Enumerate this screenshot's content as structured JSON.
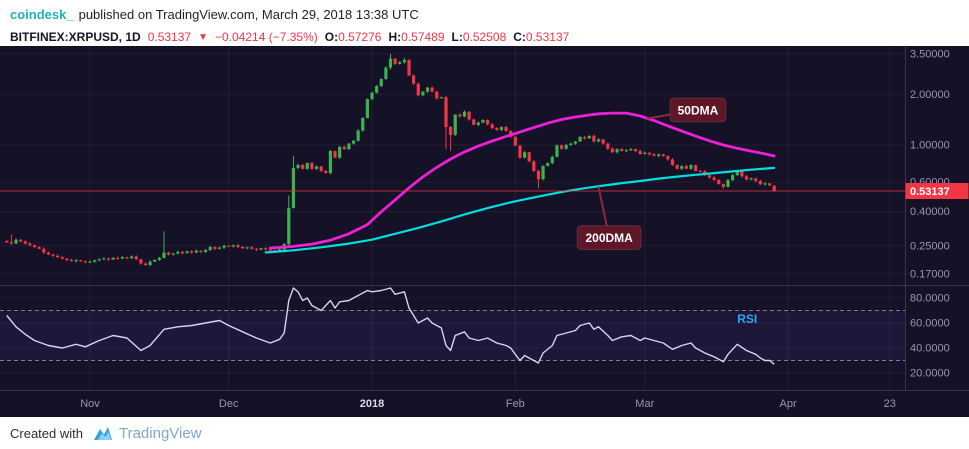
{
  "header": {
    "author": "coindesk_",
    "published": "published on TradingView.com, March 29, 2018 13:38 UTC"
  },
  "symbol_bar": {
    "symbol": "BITFINEX:XRPUSD, 1D",
    "last": "0.53137",
    "change_arrow": "▼",
    "change": "−0.04214 (−7.35%)",
    "ohlc": [
      {
        "label": "O:",
        "value": "0.57276"
      },
      {
        "label": "H:",
        "value": "0.57489"
      },
      {
        "label": "L:",
        "value": "0.52508"
      },
      {
        "label": "C:",
        "value": "0.53137"
      }
    ]
  },
  "footer": {
    "created_with": "Created with",
    "brand": "TradingView"
  },
  "colors": {
    "up": "#3bb34e",
    "down": "#f23645",
    "ma50": "#ee1fd6",
    "ma200": "#00e0df",
    "rsi_line": "#d9d2f0",
    "author_teal": "#23b3bd",
    "rsi_label": "#2fa7f0",
    "callout_bg": "#5f1626",
    "callout_line": "#8a2a3c",
    "axis_text": "#9b96ad",
    "grid": "rgba(255,255,255,0.06)"
  },
  "chart_data": {
    "type": "candlestick",
    "symbol": "BITFINEX:XRPUSD",
    "interval": "1D",
    "scale": "log",
    "x_start_date": "2017-10-14",
    "x_days_total": 196,
    "ylim": [
      0.15,
      3.9
    ],
    "price_ticks": [
      {
        "label": "3.50000",
        "value": 3.5
      },
      {
        "label": "2.00000",
        "value": 2.0
      },
      {
        "label": "1.00000",
        "value": 1.0
      },
      {
        "label": "0.60000",
        "value": 0.6
      },
      {
        "label": "0.40000",
        "value": 0.4
      },
      {
        "label": "0.25000",
        "value": 0.25
      },
      {
        "label": "0.17000",
        "value": 0.17
      }
    ],
    "time_ticks": [
      {
        "label": "Nov",
        "day": 18,
        "emphasis": false
      },
      {
        "label": "Dec",
        "day": 48,
        "emphasis": false
      },
      {
        "label": "2018",
        "day": 79,
        "emphasis": true
      },
      {
        "label": "Feb",
        "day": 110,
        "emphasis": false
      },
      {
        "label": "Mar",
        "day": 138,
        "emphasis": false
      },
      {
        "label": "Apr",
        "day": 169,
        "emphasis": false
      },
      {
        "label": "23",
        "day": 191,
        "emphasis": false
      }
    ],
    "last_price": {
      "value": 0.53137,
      "label": "0.53137"
    },
    "candles": {
      "first_open": 0.268,
      "closes": [
        0.262,
        0.258,
        0.272,
        0.266,
        0.258,
        0.252,
        0.246,
        0.24,
        0.228,
        0.222,
        0.218,
        0.214,
        0.21,
        0.206,
        0.203,
        0.205,
        0.202,
        0.2,
        0.201,
        0.205,
        0.208,
        0.21,
        0.207,
        0.212,
        0.21,
        0.214,
        0.211,
        0.216,
        0.208,
        0.196,
        0.192,
        0.201,
        0.206,
        0.212,
        0.228,
        0.222,
        0.225,
        0.23,
        0.226,
        0.232,
        0.228,
        0.234,
        0.23,
        0.236,
        0.246,
        0.24,
        0.244,
        0.25,
        0.248,
        0.252,
        0.246,
        0.242,
        0.245,
        0.24,
        0.237,
        0.242,
        0.238,
        0.235,
        0.232,
        0.238,
        0.256,
        0.42,
        0.73,
        0.76,
        0.72,
        0.78,
        0.72,
        0.745,
        0.7,
        0.68,
        0.92,
        0.84,
        0.975,
        0.945,
        1.02,
        1.06,
        1.22,
        1.45,
        1.88,
        2.05,
        2.25,
        2.48,
        2.9,
        3.28,
        3.05,
        3.12,
        3.22,
        2.6,
        2.32,
        1.98,
        2.08,
        2.2,
        2.08,
        1.9,
        1.93,
        1.28,
        1.15,
        1.52,
        1.48,
        1.58,
        1.42,
        1.32,
        1.36,
        1.41,
        1.33,
        1.26,
        1.23,
        1.28,
        1.21,
        1.12,
        0.99,
        0.84,
        0.905,
        0.8,
        0.7,
        0.625,
        0.75,
        0.78,
        0.85,
        0.995,
        0.95,
        1.0,
        1.02,
        1.05,
        1.115,
        1.095,
        1.135,
        1.05,
        1.08,
        1.02,
        0.95,
        0.905,
        0.945,
        0.92,
        0.93,
        0.945,
        0.92,
        0.885,
        0.9,
        0.88,
        0.862,
        0.878,
        0.858,
        0.82,
        0.76,
        0.722,
        0.748,
        0.722,
        0.758,
        0.7,
        0.698,
        0.66,
        0.64,
        0.618,
        0.585,
        0.562,
        0.618,
        0.66,
        0.698,
        0.65,
        0.622,
        0.632,
        0.61,
        0.582,
        0.59,
        0.573,
        0.531
      ],
      "overrides": {
        "1": {
          "h": 0.292
        },
        "34": {
          "h": 0.305
        },
        "61": {
          "h": 0.5,
          "l": 0.25
        },
        "62": {
          "h": 0.86
        },
        "83": {
          "h": 3.5,
          "l": 2.82
        },
        "86": {
          "h": 3.32
        },
        "95": {
          "l": 0.95
        },
        "96": {
          "l": 0.92
        },
        "115": {
          "l": 0.552
        },
        "155": {
          "l": 0.548
        },
        "166": {
          "o": 0.57276,
          "h": 0.57489,
          "l": 0.52508,
          "c": 0.53137
        }
      }
    },
    "ma50": {
      "name": "50DMA",
      "points": [
        [
          57,
          0.242
        ],
        [
          62,
          0.248
        ],
        [
          66,
          0.256
        ],
        [
          70,
          0.27
        ],
        [
          74,
          0.295
        ],
        [
          78,
          0.335
        ],
        [
          81,
          0.4
        ],
        [
          84,
          0.47
        ],
        [
          87,
          0.555
        ],
        [
          90,
          0.645
        ],
        [
          93,
          0.735
        ],
        [
          96,
          0.825
        ],
        [
          99,
          0.91
        ],
        [
          102,
          0.985
        ],
        [
          105,
          1.055
        ],
        [
          108,
          1.125
        ],
        [
          111,
          1.195
        ],
        [
          114,
          1.27
        ],
        [
          117,
          1.35
        ],
        [
          120,
          1.42
        ],
        [
          123,
          1.47
        ],
        [
          126,
          1.51
        ],
        [
          128,
          1.535
        ],
        [
          131,
          1.55
        ],
        [
          134,
          1.55
        ],
        [
          137,
          1.49
        ],
        [
          140,
          1.4
        ],
        [
          143,
          1.3
        ],
        [
          146,
          1.21
        ],
        [
          149,
          1.13
        ],
        [
          152,
          1.06
        ],
        [
          155,
          1.0
        ],
        [
          158,
          0.955
        ],
        [
          161,
          0.92
        ],
        [
          164,
          0.885
        ],
        [
          166,
          0.86
        ]
      ]
    },
    "ma200": {
      "name": "200DMA",
      "points": [
        [
          56,
          0.228
        ],
        [
          62,
          0.235
        ],
        [
          68,
          0.245
        ],
        [
          74,
          0.258
        ],
        [
          79,
          0.272
        ],
        [
          84,
          0.295
        ],
        [
          89,
          0.32
        ],
        [
          94,
          0.35
        ],
        [
          99,
          0.385
        ],
        [
          104,
          0.42
        ],
        [
          109,
          0.455
        ],
        [
          113,
          0.48
        ],
        [
          117,
          0.505
        ],
        [
          121,
          0.53
        ],
        [
          125,
          0.552
        ],
        [
          129,
          0.572
        ],
        [
          133,
          0.592
        ],
        [
          137,
          0.61
        ],
        [
          141,
          0.63
        ],
        [
          145,
          0.648
        ],
        [
          149,
          0.664
        ],
        [
          153,
          0.68
        ],
        [
          157,
          0.696
        ],
        [
          161,
          0.712
        ],
        [
          166,
          0.73
        ]
      ]
    },
    "rsi": {
      "label": "RSI",
      "range": [
        12,
        88
      ],
      "bands": [
        70,
        30
      ],
      "ticks": [
        {
          "label": "80.0000",
          "value": 80
        },
        {
          "label": "60.0000",
          "value": 60
        },
        {
          "label": "40.0000",
          "value": 40
        },
        {
          "label": "20.0000",
          "value": 20
        }
      ],
      "points": [
        [
          0,
          66
        ],
        [
          2,
          57
        ],
        [
          4,
          51
        ],
        [
          6,
          46
        ],
        [
          9,
          42
        ],
        [
          12,
          40
        ],
        [
          15,
          43
        ],
        [
          17,
          41
        ],
        [
          20,
          46
        ],
        [
          23,
          50
        ],
        [
          26,
          48
        ],
        [
          29,
          38
        ],
        [
          31,
          42
        ],
        [
          34,
          55
        ],
        [
          37,
          57
        ],
        [
          40,
          58
        ],
        [
          43,
          60
        ],
        [
          46,
          62
        ],
        [
          48,
          58
        ],
        [
          51,
          53
        ],
        [
          54,
          48
        ],
        [
          57,
          44
        ],
        [
          59,
          47
        ],
        [
          60,
          52
        ],
        [
          61,
          78
        ],
        [
          62,
          88
        ],
        [
          63,
          85
        ],
        [
          64,
          78
        ],
        [
          65,
          80
        ],
        [
          66,
          74
        ],
        [
          68,
          70
        ],
        [
          70,
          78
        ],
        [
          71,
          72
        ],
        [
          72,
          77
        ],
        [
          74,
          78
        ],
        [
          76,
          82
        ],
        [
          78,
          86
        ],
        [
          79,
          85
        ],
        [
          81,
          86
        ],
        [
          83,
          88
        ],
        [
          84,
          83
        ],
        [
          86,
          85
        ],
        [
          87,
          72
        ],
        [
          88,
          66
        ],
        [
          89,
          60
        ],
        [
          91,
          64
        ],
        [
          92,
          60
        ],
        [
          94,
          56
        ],
        [
          95,
          42
        ],
        [
          96,
          38
        ],
        [
          97,
          50
        ],
        [
          99,
          53
        ],
        [
          100,
          48
        ],
        [
          102,
          46
        ],
        [
          104,
          48
        ],
        [
          106,
          44
        ],
        [
          108,
          42
        ],
        [
          109,
          40
        ],
        [
          110,
          35
        ],
        [
          111,
          30
        ],
        [
          112,
          34
        ],
        [
          114,
          30
        ],
        [
          115,
          28
        ],
        [
          116,
          36
        ],
        [
          118,
          42
        ],
        [
          119,
          50
        ],
        [
          121,
          52
        ],
        [
          123,
          54
        ],
        [
          124,
          58
        ],
        [
          126,
          60
        ],
        [
          127,
          55
        ],
        [
          128,
          57
        ],
        [
          130,
          50
        ],
        [
          131,
          46
        ],
        [
          133,
          49
        ],
        [
          135,
          50
        ],
        [
          137,
          46
        ],
        [
          138,
          48
        ],
        [
          140,
          46
        ],
        [
          142,
          44
        ],
        [
          144,
          39
        ],
        [
          146,
          42
        ],
        [
          148,
          44
        ],
        [
          149,
          40
        ],
        [
          151,
          36
        ],
        [
          153,
          33
        ],
        [
          155,
          29
        ],
        [
          156,
          35
        ],
        [
          157,
          39
        ],
        [
          158,
          43
        ],
        [
          160,
          38
        ],
        [
          162,
          35
        ],
        [
          163,
          32
        ],
        [
          164,
          30
        ],
        [
          165,
          30
        ],
        [
          166,
          27
        ]
      ]
    },
    "callouts": [
      {
        "label": "50DMA",
        "box": {
          "day": 149.5,
          "price": 1.62
        },
        "target": {
          "day": 138.5,
          "price": 1.44
        }
      },
      {
        "label": "200DMA",
        "box": {
          "day": 130.3,
          "price": 0.28
        },
        "target": {
          "day": 128,
          "price": 0.565
        }
      }
    ]
  }
}
